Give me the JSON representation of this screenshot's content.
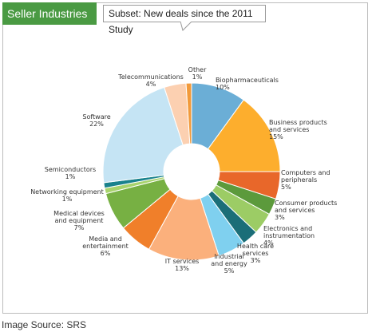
{
  "header": {
    "title": "Seller Industries",
    "subtitle": "Subset: New deals since the 2011 Study"
  },
  "footer": {
    "source": "Image Source: SRS"
  },
  "chart_data": {
    "type": "pie",
    "donut": true,
    "slices": [
      {
        "name": "Biopharmaceuticals",
        "label_lines": [
          "Biopharmaceuticals",
          "10%"
        ],
        "value": 10,
        "color": "#6baed6"
      },
      {
        "name": "Business products and services",
        "label_lines": [
          "Business products",
          "and services",
          "15%"
        ],
        "value": 15,
        "color": "#fdae2d"
      },
      {
        "name": "Computers and peripherals",
        "label_lines": [
          "Computers and",
          "peripherals",
          "5%"
        ],
        "value": 5,
        "color": "#e8672a"
      },
      {
        "name": "Consumer products and services",
        "label_lines": [
          "Consumer products",
          "and services",
          "3%"
        ],
        "value": 3,
        "color": "#5c9a3c"
      },
      {
        "name": "Electronics and instrumentation",
        "label_lines": [
          "Electronics and",
          "instrumentation",
          "4%"
        ],
        "value": 4,
        "color": "#9ccc65"
      },
      {
        "name": "Health care services",
        "label_lines": [
          "Health care",
          "services",
          "3%"
        ],
        "value": 3,
        "color": "#1b6e78"
      },
      {
        "name": "Industrial and energy",
        "label_lines": [
          "Industrial",
          "and energy",
          "5%"
        ],
        "value": 5,
        "color": "#7fd0ef"
      },
      {
        "name": "IT services",
        "label_lines": [
          "IT services",
          "13%"
        ],
        "value": 13,
        "color": "#fbb07c"
      },
      {
        "name": "Media and entertainment",
        "label_lines": [
          "Media and",
          "entertainment",
          "6%"
        ],
        "value": 6,
        "color": "#f07f2a"
      },
      {
        "name": "Medical devices and equipment",
        "label_lines": [
          "Medical devices",
          "and equipment",
          "7%"
        ],
        "value": 7,
        "color": "#77b043"
      },
      {
        "name": "Networking equipment",
        "label_lines": [
          "Networking equipment",
          "1%"
        ],
        "value": 1,
        "color": "#a8d36c"
      },
      {
        "name": "Semiconductors",
        "label_lines": [
          "Semiconductors",
          "1%"
        ],
        "value": 1,
        "color": "#19828d"
      },
      {
        "name": "Software",
        "label_lines": [
          "Software",
          "22%"
        ],
        "value": 22,
        "color": "#c5e4f4"
      },
      {
        "name": "Telecommunications",
        "label_lines": [
          "Telecommunications",
          "4%"
        ],
        "value": 4,
        "color": "#fcd0b1"
      },
      {
        "name": "Other",
        "label_lines": [
          "Other",
          "1%"
        ],
        "value": 1,
        "color": "#f29a3b"
      }
    ]
  }
}
